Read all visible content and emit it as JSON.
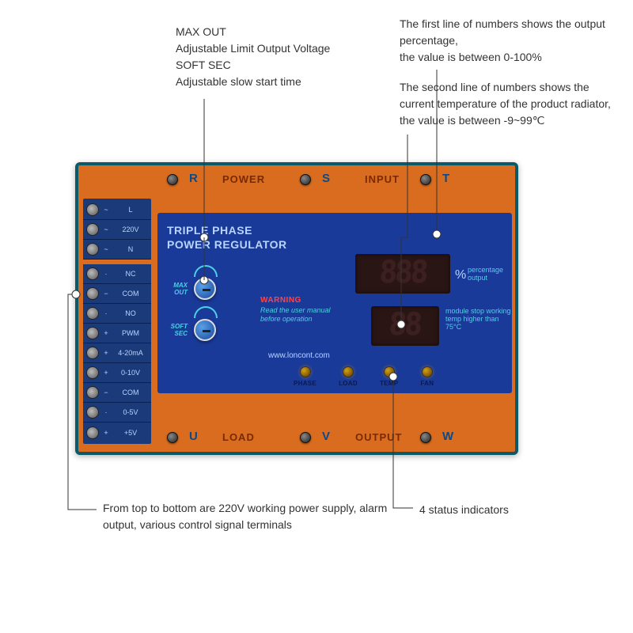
{
  "annotations": {
    "top_left": {
      "l1": "MAX OUT",
      "l2": "Adjustable Limit Output Voltage",
      "l3": "SOFT SEC",
      "l4": "Adjustable slow start time"
    },
    "top_right_1": "The first line of numbers shows the output percentage,\nthe value is between 0-100%",
    "top_right_2": "The second line of numbers shows the current temperature of the product radiator, the value is between -9~99℃",
    "bottom_left": "From top to bottom are 220V working power supply, alarm output, various control signal terminals",
    "bottom_right": "4 status indicators"
  },
  "device": {
    "top_labels": {
      "power": "POWER",
      "input": "INPUT",
      "letters": [
        "R",
        "S",
        "T"
      ]
    },
    "bottom_labels": {
      "load": "LOAD",
      "output": "OUTPUT",
      "letters": [
        "U",
        "V",
        "W"
      ]
    },
    "terminals": [
      {
        "sym": "~",
        "label": "L"
      },
      {
        "sym": "~",
        "label": "220V"
      },
      {
        "sym": "~",
        "label": "N"
      }
    ],
    "terminals2": [
      {
        "sym": "·",
        "label": "NC"
      },
      {
        "sym": "−",
        "label": "COM"
      },
      {
        "sym": "·",
        "label": "NO"
      },
      {
        "sym": "+",
        "label": "PWM"
      },
      {
        "sym": "+",
        "label": "4-20mA"
      },
      {
        "sym": "+",
        "label": "0-10V"
      },
      {
        "sym": "−",
        "label": "COM"
      },
      {
        "sym": "·",
        "label": "0-5V"
      },
      {
        "sym": "+",
        "label": "+5V"
      }
    ],
    "panel": {
      "title_l1": "TRIPLE PHASE",
      "title_l2": "POWER REGULATOR",
      "knob1": "MAX\nOUT",
      "knob2": "SOFT\nSEC",
      "warning_title": "WARNING",
      "warning_text": "Read the user manual before operation",
      "website": "www.loncont.com",
      "display1": "888",
      "display1_pct": "%",
      "display1_label": "percentage\noutput",
      "display2": "88",
      "display2_label": "module stop working temp higher than 75°C",
      "leds": [
        "PHASE",
        "LOAD",
        "TEMP",
        "FAN"
      ]
    }
  },
  "colors": {
    "device_bg": "#d96c1e",
    "device_border": "#0a5a6a",
    "panel_bg": "#1a3a9a",
    "cyan": "#4dd0e1",
    "annotation_text": "#333333"
  }
}
